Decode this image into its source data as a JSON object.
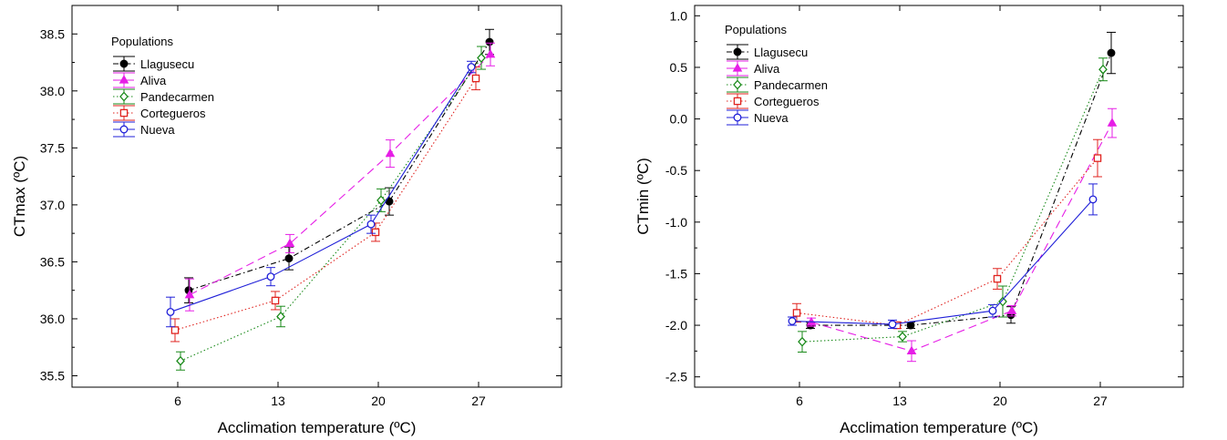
{
  "chart_data": [
    {
      "type": "line",
      "xlabel": "Acclimation temperature (ºC)",
      "ylabel": "CTmax (ºC)",
      "categories": [
        "6",
        "13",
        "20",
        "27"
      ],
      "ylim": [
        35.4,
        38.75
      ],
      "yticks": [
        35.5,
        36.0,
        36.5,
        37.0,
        37.5,
        38.0,
        38.5
      ],
      "ytick_labels": [
        "35.5",
        "36.0",
        "36.5",
        "37.0",
        "37.5",
        "38.0",
        "38.5"
      ],
      "grid": false,
      "legend": {
        "title": "Populations",
        "position": "top-left"
      },
      "series": [
        {
          "name": "Llagusecu",
          "color": "#000000",
          "marker": "filled-circle",
          "dash": "dashdot",
          "values": [
            36.25,
            36.53,
            37.03,
            38.43
          ],
          "err": [
            0.11,
            0.1,
            0.12,
            0.11
          ]
        },
        {
          "name": "Aliva",
          "color": "#e61ee6",
          "marker": "filled-triangle",
          "dash": "dashed",
          "values": [
            36.21,
            36.66,
            37.45,
            38.32
          ],
          "err": [
            0.14,
            0.08,
            0.12,
            0.1
          ]
        },
        {
          "name": "Pandecarmen",
          "color": "#1a8a1a",
          "marker": "open-diamond",
          "dash": "dotted",
          "values": [
            35.63,
            36.02,
            37.04,
            38.29
          ],
          "err": [
            0.08,
            0.09,
            0.1,
            0.1
          ]
        },
        {
          "name": "Cortegueros",
          "color": "#e0231f",
          "marker": "open-square",
          "dash": "dotted",
          "values": [
            35.9,
            36.16,
            36.76,
            38.11
          ],
          "err": [
            0.1,
            0.08,
            0.08,
            0.1
          ]
        },
        {
          "name": "Nueva",
          "color": "#1f1fd8",
          "marker": "open-circle",
          "dash": "solid",
          "values": [
            36.06,
            36.37,
            36.83,
            38.21
          ],
          "err": [
            0.13,
            0.08,
            0.08,
            0.05
          ]
        }
      ]
    },
    {
      "type": "line",
      "xlabel": "Acclimation temperature (ºC)",
      "ylabel": "CTmin (ºC)",
      "categories": [
        "6",
        "13",
        "20",
        "27"
      ],
      "ylim": [
        -2.6,
        1.1
      ],
      "yticks": [
        -2.5,
        -2.0,
        -1.5,
        -1.0,
        -0.5,
        0.0,
        0.5,
        1.0
      ],
      "ytick_labels": [
        "-2.5",
        "-2.0",
        "-1.5",
        "-1.0",
        "-0.5",
        "0.0",
        "0.5",
        "1.0"
      ],
      "grid": false,
      "legend": {
        "title": "Populations",
        "position": "top-left"
      },
      "series": [
        {
          "name": "Llagusecu",
          "color": "#000000",
          "marker": "filled-circle",
          "dash": "dashdot",
          "values": [
            -2.0,
            -2.0,
            -1.9,
            0.64
          ],
          "err": [
            0.03,
            0.03,
            0.08,
            0.2
          ]
        },
        {
          "name": "Aliva",
          "color": "#e61ee6",
          "marker": "filled-triangle",
          "dash": "dashed",
          "values": [
            -1.97,
            -2.25,
            -1.86,
            -0.04
          ],
          "err": [
            0.04,
            0.1,
            0.05,
            0.14
          ]
        },
        {
          "name": "Pandecarmen",
          "color": "#1a8a1a",
          "marker": "open-diamond",
          "dash": "dotted",
          "values": [
            -2.16,
            -2.11,
            -1.77,
            0.48
          ],
          "err": [
            0.1,
            0.05,
            0.15,
            0.11
          ]
        },
        {
          "name": "Cortegueros",
          "color": "#e0231f",
          "marker": "open-square",
          "dash": "dotted",
          "values": [
            -1.88,
            -2.0,
            -1.55,
            -0.38
          ],
          "err": [
            0.09,
            0.03,
            0.1,
            0.18
          ]
        },
        {
          "name": "Nueva",
          "color": "#1f1fd8",
          "marker": "open-circle",
          "dash": "solid",
          "values": [
            -1.96,
            -1.99,
            -1.86,
            -0.78
          ],
          "err": [
            0.04,
            0.04,
            0.06,
            0.15
          ]
        }
      ]
    }
  ]
}
